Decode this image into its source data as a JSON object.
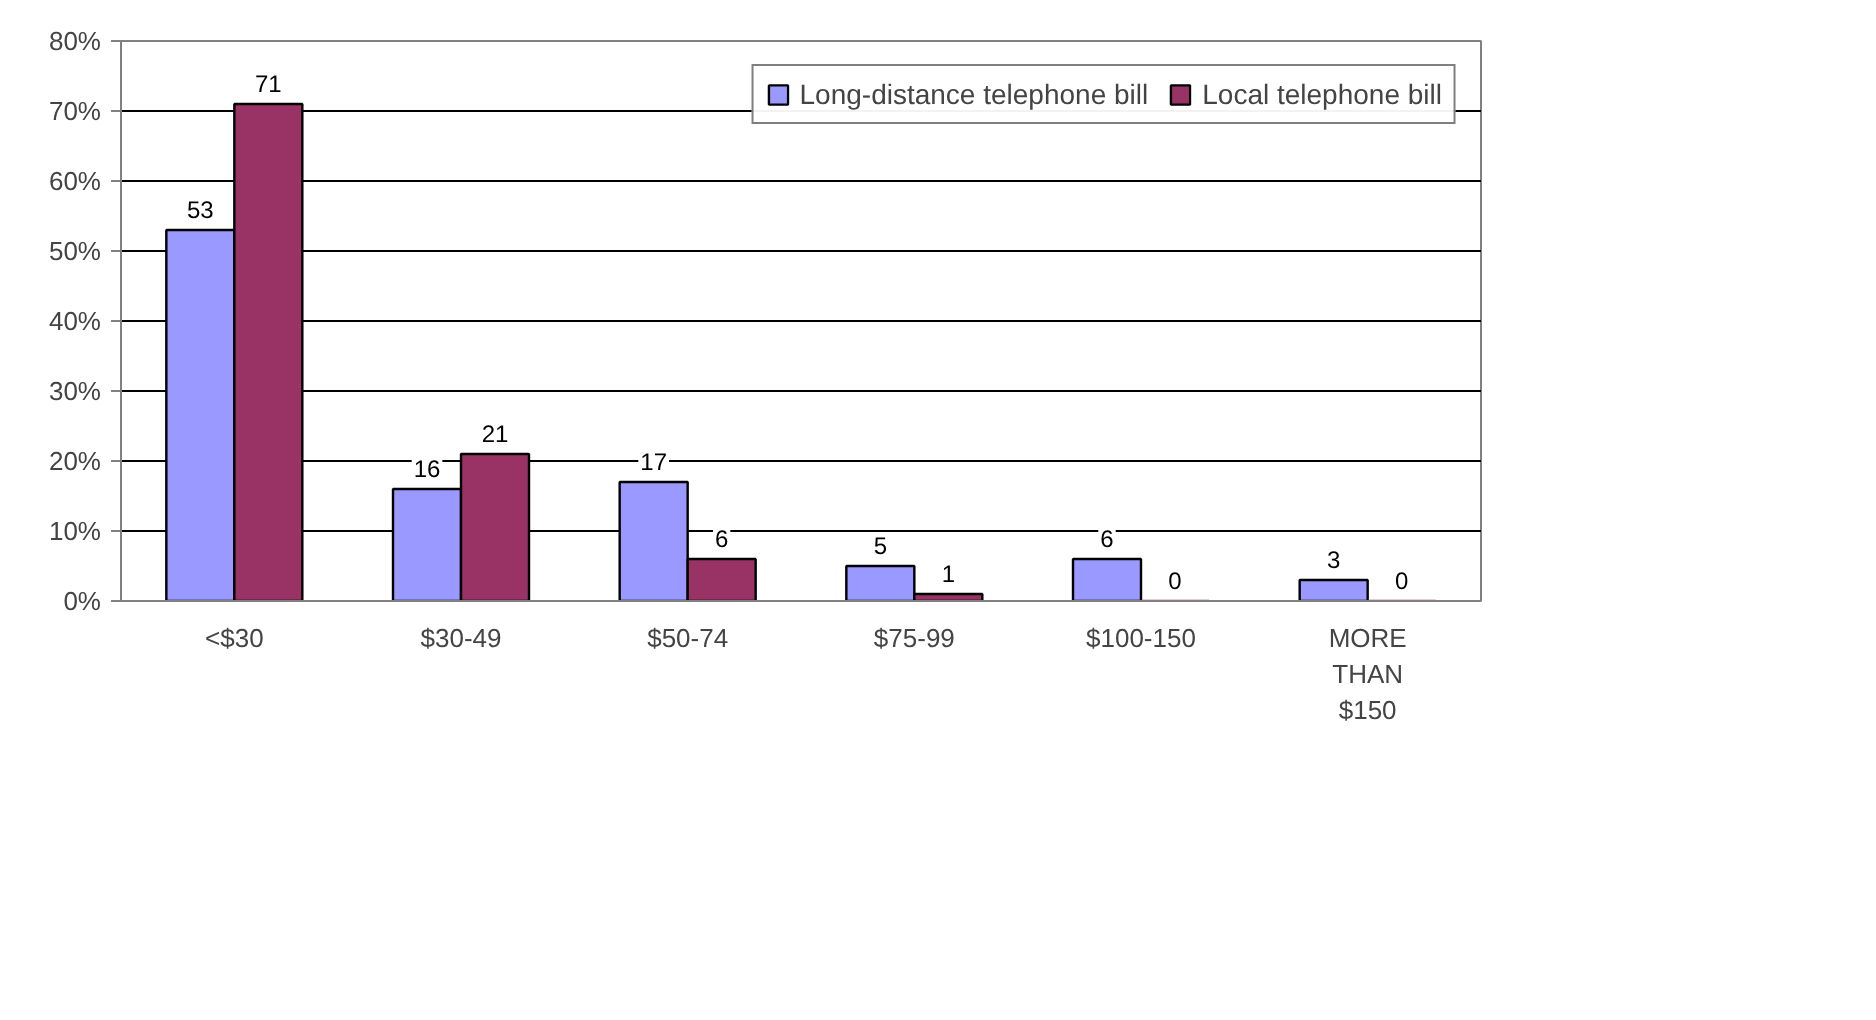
{
  "chart_data": {
    "type": "bar",
    "categories": [
      "<$30",
      "$30-49",
      "$50-74",
      "$75-99",
      "$100-150",
      "MORE THAN $150"
    ],
    "series": [
      {
        "name": "Long-distance telephone bill",
        "color": "#9999ff",
        "values": [
          53,
          16,
          17,
          5,
          6,
          3
        ]
      },
      {
        "name": "Local telephone bill",
        "color": "#993366",
        "values": [
          71,
          21,
          6,
          1,
          0,
          0
        ]
      }
    ],
    "ylim": [
      0,
      80
    ],
    "yticks": [
      {
        "value": 0,
        "label": "0%"
      },
      {
        "value": 10,
        "label": "10%"
      },
      {
        "value": 20,
        "label": "20%"
      },
      {
        "value": 30,
        "label": "30%"
      },
      {
        "value": 40,
        "label": "40%"
      },
      {
        "value": 50,
        "label": "50%"
      },
      {
        "value": 60,
        "label": "60%"
      },
      {
        "value": 70,
        "label": "70%"
      },
      {
        "value": 80,
        "label": "80%"
      }
    ],
    "grid": "y",
    "legend": "top right",
    "data_labels": true
  }
}
